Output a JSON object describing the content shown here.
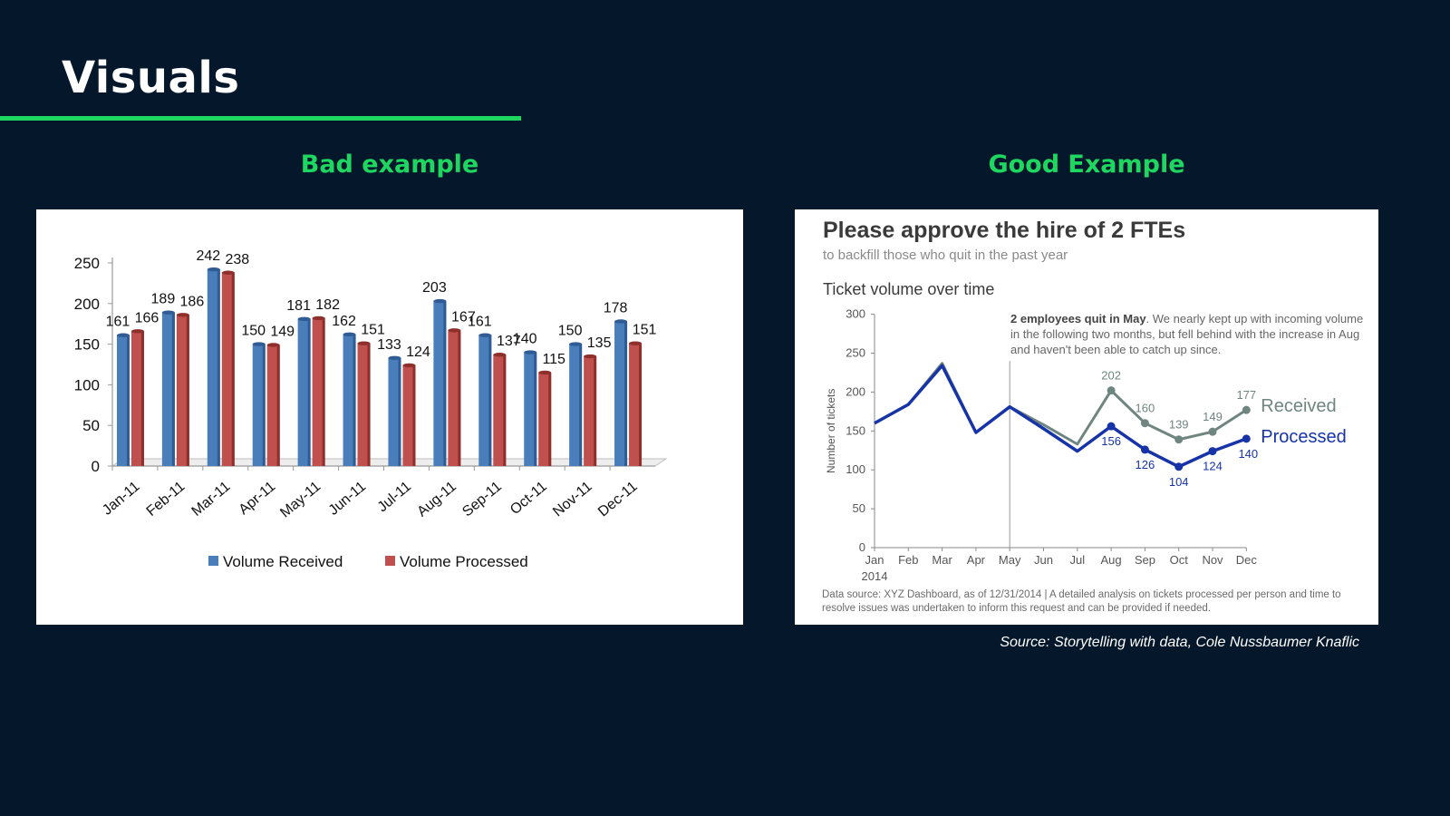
{
  "page": {
    "title": "Visuals",
    "bad_heading": "Bad example",
    "good_heading": "Good Example",
    "source": "Source: Storytelling with data, Cole Nussbaumer Knaflic"
  },
  "colors": {
    "background": "#04172b",
    "accent": "#1ed760",
    "bad_received": "#4a7ebb",
    "bad_processed": "#c0504d",
    "good_received": "#6f8580",
    "good_processed": "#1633a8"
  },
  "good": {
    "title": "Please approve the hire of 2 FTEs",
    "subtitle": "to backfill those who quit in the past year",
    "annotation_bold": "2 employees quit in May",
    "annotation_rest": ". We nearly kept up with incoming volume in the following two months, but fell behind with the increase in Aug and haven't been able to catch up since.",
    "footnote": "Data source: XYZ Dashboard, as of 12/31/2014  |  A detailed analysis on tickets processed per person and time to resolve issues was undertaken to inform this request and can be provided if needed."
  },
  "chart_data": [
    {
      "type": "bar",
      "title": "",
      "categories": [
        "Jan-11",
        "Feb-11",
        "Mar-11",
        "Apr-11",
        "May-11",
        "Jun-11",
        "Jul-11",
        "Aug-11",
        "Sep-11",
        "Oct-11",
        "Nov-11",
        "Dec-11"
      ],
      "series": [
        {
          "name": "Volume Received",
          "values": [
            161,
            189,
            242,
            150,
            181,
            162,
            133,
            203,
            161,
            140,
            150,
            178
          ]
        },
        {
          "name": "Volume Processed",
          "values": [
            166,
            186,
            238,
            149,
            182,
            151,
            124,
            167,
            137,
            115,
            135,
            151
          ]
        }
      ],
      "yticks": [
        0,
        50,
        100,
        150,
        200,
        250
      ],
      "ylim": [
        0,
        250
      ],
      "legend": "bottom",
      "grid": false
    },
    {
      "type": "line",
      "title": "Ticket volume over time",
      "ylabel": "Number of tickets",
      "x": [
        "Jan",
        "Feb",
        "Mar",
        "Apr",
        "May",
        "Jun",
        "Jul",
        "Aug",
        "Sep",
        "Oct",
        "Nov",
        "Dec"
      ],
      "x_year_label": "2014",
      "series": [
        {
          "name": "Received",
          "values": [
            160,
            184,
            237,
            148,
            181,
            158,
            133,
            202,
            160,
            139,
            149,
            177
          ]
        },
        {
          "name": "Processed",
          "values": [
            160,
            184,
            234,
            148,
            181,
            153,
            124,
            156,
            126,
            104,
            124,
            140
          ]
        }
      ],
      "labeled_from_index": 7,
      "yticks": [
        0,
        50,
        100,
        150,
        200,
        250,
        300
      ],
      "ylim": [
        0,
        300
      ],
      "marker_month": "May",
      "legend": "right, end of lines",
      "grid": false
    }
  ]
}
